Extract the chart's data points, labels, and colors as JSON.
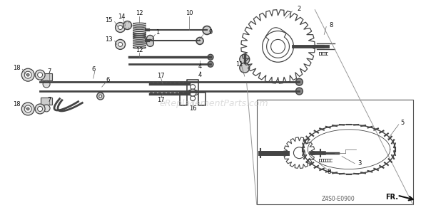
{
  "background_color": "#ffffff",
  "watermark_text": "eReplacementParts.com",
  "watermark_color": "#bbbbbb",
  "watermark_alpha": 0.5,
  "diagram_code": "Z4S0-E0900",
  "fr_label": "FR.",
  "fig_width": 5.9,
  "fig_height": 2.95,
  "dpi": 100,
  "parts_color": "#444444",
  "label_color": "#111111",
  "label_fontsize": 6.0
}
